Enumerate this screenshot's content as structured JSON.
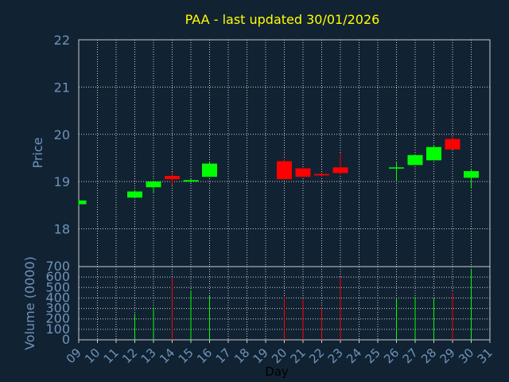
{
  "page": {
    "background": "#112233"
  },
  "chart_data": [
    {
      "type": "candlestick",
      "title": "PAA - last updated 30/01/2026",
      "ylabel": "Price",
      "ylim": [
        17.2,
        22
      ],
      "yticks": [
        18,
        19,
        20,
        21,
        22
      ],
      "colors": {
        "up": "#00ff00",
        "down": "#ff0000",
        "title": "#ffff00",
        "axis_text": "#6f93b8"
      },
      "candles": [
        {
          "day": 9,
          "open": 18.52,
          "high": 18.6,
          "low": 18.5,
          "close": 18.6
        },
        {
          "day": 12,
          "open": 18.66,
          "high": 18.82,
          "low": 18.66,
          "close": 18.79
        },
        {
          "day": 13,
          "open": 18.88,
          "high": 19.02,
          "low": 18.75,
          "close": 19.0
        },
        {
          "day": 14,
          "open": 19.12,
          "high": 19.2,
          "low": 18.92,
          "close": 19.05
        },
        {
          "day": 15,
          "open": 19.0,
          "high": 19.05,
          "low": 18.98,
          "close": 19.03
        },
        {
          "day": 16,
          "open": 19.1,
          "high": 19.4,
          "low": 19.1,
          "close": 19.38
        },
        {
          "day": 20,
          "open": 19.43,
          "high": 19.48,
          "low": 19.05,
          "close": 19.05
        },
        {
          "day": 21,
          "open": 19.28,
          "high": 19.28,
          "low": 19.1,
          "close": 19.1
        },
        {
          "day": 22,
          "open": 19.16,
          "high": 19.2,
          "low": 19.1,
          "close": 19.13
        },
        {
          "day": 23,
          "open": 19.3,
          "high": 19.6,
          "low": 19.15,
          "close": 19.18
        },
        {
          "day": 26,
          "open": 19.28,
          "high": 19.42,
          "low": 19.0,
          "close": 19.3
        },
        {
          "day": 27,
          "open": 19.35,
          "high": 19.58,
          "low": 19.35,
          "close": 19.56
        },
        {
          "day": 28,
          "open": 19.45,
          "high": 19.78,
          "low": 19.45,
          "close": 19.73
        },
        {
          "day": 29,
          "open": 19.9,
          "high": 19.97,
          "low": 19.68,
          "close": 19.68
        },
        {
          "day": 30,
          "open": 19.08,
          "high": 19.27,
          "low": 18.85,
          "close": 19.22
        }
      ]
    },
    {
      "type": "bar",
      "ylabel": "Volume (0000)",
      "xlabel": "Day",
      "ylim": [
        0,
        700
      ],
      "yticks": [
        0,
        100,
        200,
        300,
        400,
        500,
        600,
        700
      ],
      "x_tick_labels": [
        "09",
        "10",
        "11",
        "12",
        "13",
        "14",
        "15",
        "16",
        "17",
        "18",
        "19",
        "20",
        "21",
        "22",
        "23",
        "24",
        "25",
        "26",
        "27",
        "28",
        "29",
        "30",
        "31"
      ],
      "bars": [
        {
          "day": 9,
          "volume": 0,
          "direction": "up"
        },
        {
          "day": 12,
          "volume": 250,
          "direction": "up"
        },
        {
          "day": 13,
          "volume": 310,
          "direction": "up"
        },
        {
          "day": 14,
          "volume": 590,
          "direction": "down"
        },
        {
          "day": 15,
          "volume": 470,
          "direction": "up"
        },
        {
          "day": 16,
          "volume": 420,
          "direction": "up"
        },
        {
          "day": 20,
          "volume": 410,
          "direction": "down"
        },
        {
          "day": 21,
          "volume": 390,
          "direction": "down"
        },
        {
          "day": 22,
          "volume": 310,
          "direction": "down"
        },
        {
          "day": 23,
          "volume": 600,
          "direction": "down"
        },
        {
          "day": 26,
          "volume": 400,
          "direction": "up"
        },
        {
          "day": 27,
          "volume": 410,
          "direction": "up"
        },
        {
          "day": 28,
          "volume": 400,
          "direction": "up"
        },
        {
          "day": 29,
          "volume": 450,
          "direction": "down"
        },
        {
          "day": 30,
          "volume": 680,
          "direction": "up"
        }
      ]
    }
  ]
}
